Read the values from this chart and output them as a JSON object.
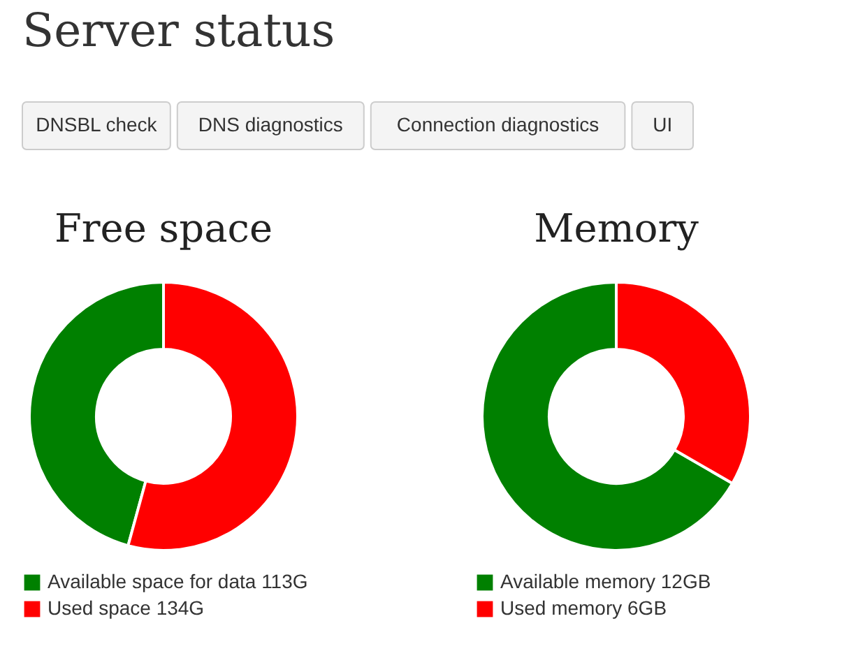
{
  "chart_data": [
    {
      "type": "other",
      "title": "Server status",
      "annotations": [
        "DNSBL check",
        "DNS diagnostics",
        "Connection diagnostics",
        "UI"
      ]
    },
    {
      "type": "donut",
      "title": "Free space",
      "categories": [
        "Available space for data",
        "Used space"
      ],
      "values": [
        113,
        134
      ],
      "value_labels": [
        "113G",
        "134G"
      ],
      "colors": [
        "#008000",
        "#ff0000"
      ],
      "legend": "bottom left"
    },
    {
      "type": "donut",
      "title": "Memory",
      "categories": [
        "Available memory",
        "Used memory"
      ],
      "values": [
        12,
        6
      ],
      "value_labels": [
        "12GB",
        "6GB"
      ],
      "colors": [
        "#008000",
        "#ff0000"
      ],
      "legend": "bottom left"
    }
  ]
}
